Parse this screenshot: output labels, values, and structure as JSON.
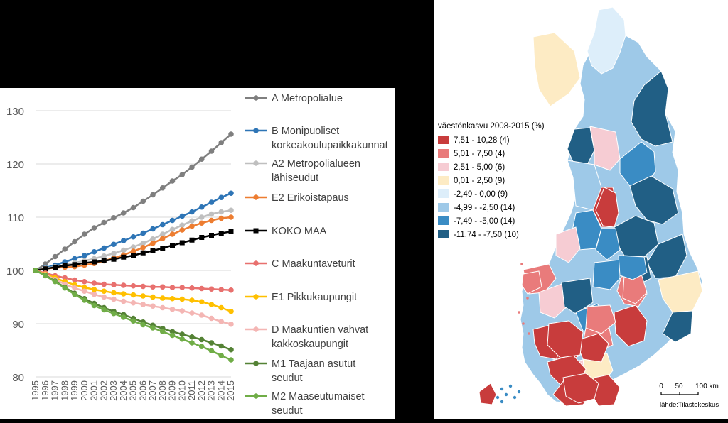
{
  "chart_data": [
    {
      "type": "line",
      "x": [
        "1995",
        "1996",
        "1997",
        "1998",
        "1999",
        "2000",
        "2001",
        "2002",
        "2003",
        "2004",
        "2005",
        "2006",
        "2007",
        "2008",
        "2009",
        "2010",
        "2011",
        "2012",
        "2013",
        "2014",
        "2015"
      ],
      "ylim": [
        80,
        130
      ],
      "yticks": [
        80,
        90,
        100,
        110,
        120,
        130
      ],
      "grid": true,
      "legend_position": "right",
      "series": [
        {
          "name": "A Metropolialue",
          "legend_lines": [
            "A Metropolialue"
          ],
          "color": "#7f7f7f",
          "marker": "circle",
          "values": [
            100,
            101.2,
            102.6,
            104.0,
            105.4,
            106.8,
            108.0,
            109.0,
            109.9,
            110.8,
            111.8,
            113.0,
            114.2,
            115.5,
            116.8,
            118.0,
            119.4,
            120.9,
            122.4,
            124.0,
            125.6
          ]
        },
        {
          "name": "B Monipuoliset korkeakoulupaikkakunnat",
          "legend_lines": [
            "B Monipuoliset",
            "korkeakoulupaikkakunnat"
          ],
          "color": "#2e75b6",
          "marker": "circle",
          "values": [
            100,
            100.5,
            101.0,
            101.6,
            102.2,
            102.8,
            103.5,
            104.2,
            104.9,
            105.6,
            106.3,
            107.0,
            107.8,
            108.6,
            109.4,
            110.2,
            111.0,
            111.9,
            112.8,
            113.7,
            114.5
          ]
        },
        {
          "name": "A2 Metropolialueen lähiseudut",
          "legend_lines": [
            "A2 Metropolialueen",
            "lähiseudut"
          ],
          "color": "#bfbfbf",
          "marker": "circle",
          "values": [
            100,
            100.4,
            100.7,
            101.0,
            101.4,
            101.8,
            102.2,
            102.7,
            103.2,
            103.8,
            104.4,
            105.1,
            105.9,
            106.8,
            107.7,
            108.5,
            109.3,
            110.0,
            110.6,
            111.0,
            111.3
          ]
        },
        {
          "name": "E2 Erikoistapaus",
          "legend_lines": [
            "E2 Erikoistapaus"
          ],
          "color": "#ed7d31",
          "marker": "circle",
          "values": [
            100,
            100.3,
            100.5,
            100.6,
            100.7,
            101.0,
            101.3,
            101.8,
            102.3,
            102.9,
            103.6,
            104.3,
            105.1,
            106.0,
            106.8,
            107.6,
            108.3,
            108.9,
            109.4,
            109.8,
            110.0
          ]
        },
        {
          "name": "KOKO MAA",
          "legend_lines": [
            "KOKO MAA"
          ],
          "color": "#000000",
          "marker": "square",
          "values": [
            100,
            100.3,
            100.6,
            100.9,
            101.1,
            101.4,
            101.6,
            101.8,
            102.1,
            102.5,
            102.8,
            103.3,
            103.7,
            104.2,
            104.7,
            105.2,
            105.7,
            106.2,
            106.6,
            107.0,
            107.3
          ]
        },
        {
          "name": "C Maakuntaveturit",
          "legend_lines": [
            "C Maakuntaveturit"
          ],
          "color": "#e8706e",
          "marker": "circle",
          "values": [
            100,
            99.5,
            99.0,
            98.6,
            98.2,
            97.9,
            97.6,
            97.4,
            97.3,
            97.2,
            97.1,
            97.0,
            96.9,
            96.9,
            96.8,
            96.8,
            96.7,
            96.6,
            96.5,
            96.4,
            96.3
          ]
        },
        {
          "name": "E1 Pikkukaupungit",
          "legend_lines": [
            "E1 Pikkukaupungit"
          ],
          "color": "#ffc000",
          "marker": "circle",
          "values": [
            100,
            99.3,
            98.6,
            97.9,
            97.3,
            96.8,
            96.4,
            96.1,
            95.8,
            95.6,
            95.4,
            95.2,
            95.0,
            94.8,
            94.7,
            94.6,
            94.4,
            94.1,
            93.6,
            93.0,
            92.3
          ]
        },
        {
          "name": "D Maakuntien vahvat kakkoskaupungit",
          "legend_lines": [
            "D Maakuntien vahvat",
            "kakkoskaupungit"
          ],
          "color": "#f4b6b4",
          "marker": "circle",
          "values": [
            100,
            99.2,
            98.3,
            97.4,
            96.7,
            96.1,
            95.5,
            95.0,
            94.6,
            94.2,
            93.9,
            93.6,
            93.3,
            93.0,
            92.7,
            92.4,
            92.0,
            91.6,
            91.0,
            90.4,
            89.9
          ]
        },
        {
          "name": "M1 Taajaan asutut seudut",
          "legend_lines": [
            "M1 Taajaan asutut",
            "seudut"
          ],
          "color": "#548235",
          "marker": "circle",
          "values": [
            100,
            99.1,
            98.0,
            96.8,
            95.7,
            94.7,
            93.8,
            93.0,
            92.3,
            91.7,
            91.0,
            90.3,
            89.7,
            89.1,
            88.5,
            88.0,
            87.5,
            87.0,
            86.4,
            85.8,
            85.1
          ]
        },
        {
          "name": "M2 Maaseutumaiset seudut",
          "legend_lines": [
            "M2 Maaseutumaiset",
            "seudut"
          ],
          "color": "#70ad47",
          "marker": "circle",
          "values": [
            100,
            99.0,
            97.9,
            96.7,
            95.5,
            94.4,
            93.4,
            92.6,
            91.9,
            91.2,
            90.5,
            89.8,
            89.2,
            88.5,
            87.8,
            87.1,
            86.4,
            85.7,
            84.9,
            84.0,
            83.2
          ]
        }
      ]
    },
    {
      "type": "map",
      "legend_title": "väestönkasvu 2008-2015 (%)",
      "classes": [
        {
          "label": "7,51 - 10,28 (4)",
          "color": "#c83c3c"
        },
        {
          "label": "5,01 - 7,50 (4)",
          "color": "#e97b7b"
        },
        {
          "label": "2,51 - 5,00 (6)",
          "color": "#f6ccd3"
        },
        {
          "label": "0,01 - 2,50 (9)",
          "color": "#fdebc4"
        },
        {
          "label": "-2,49 - 0,00 (9)",
          "color": "#ddeefa"
        },
        {
          "label": "-4,99 - -2,50 (14)",
          "color": "#9ec9e8"
        },
        {
          "label": "-7,49 - -5,00 (14)",
          "color": "#3a8cc4"
        },
        {
          "label": "-11,74 - -7,50 (10)",
          "color": "#215f85"
        }
      ],
      "scale_labels": [
        "0",
        "50",
        "100 km"
      ],
      "source": "lähde:Tilastokeskus"
    }
  ]
}
